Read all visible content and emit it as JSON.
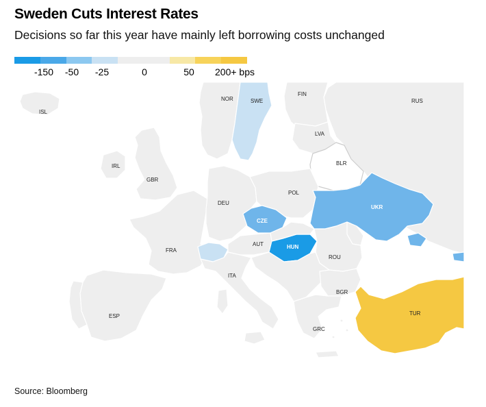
{
  "header": {
    "title": "Sweden Cuts Interest Rates",
    "subtitle": "Decisions so far this year have mainly left borrowing costs unchanged"
  },
  "legend": {
    "colors": [
      "#1a9be6",
      "#4aa8e8",
      "#8cc8f0",
      "#c9e1f3",
      "#eeeeee",
      "#eeeeee",
      "#f7e8a6",
      "#f7d35a",
      "#f5c842"
    ],
    "labels": [
      "-150",
      "-50",
      "-25",
      "0",
      "50",
      "200+ bps"
    ]
  },
  "map": {
    "countries": [
      {
        "code": "ISL",
        "change": "unchanged",
        "color": "#eeeeee"
      },
      {
        "code": "NOR",
        "change": "unchanged",
        "color": "#eeeeee"
      },
      {
        "code": "SWE",
        "change": "cut",
        "color": "#c9e1f3"
      },
      {
        "code": "FIN",
        "change": "unchanged",
        "color": "#eeeeee"
      },
      {
        "code": "RUS",
        "change": "unchanged",
        "color": "#eeeeee"
      },
      {
        "code": "IRL",
        "change": "unchanged",
        "color": "#eeeeee"
      },
      {
        "code": "GBR",
        "change": "unchanged",
        "color": "#eeeeee"
      },
      {
        "code": "LVA",
        "change": "unchanged",
        "color": "#eeeeee"
      },
      {
        "code": "BLR",
        "change": "no data",
        "color": "#ffffff"
      },
      {
        "code": "DEU",
        "change": "unchanged",
        "color": "#eeeeee"
      },
      {
        "code": "POL",
        "change": "unchanged",
        "color": "#eeeeee"
      },
      {
        "code": "CZE",
        "change": "cut",
        "color": "#6fb5ea"
      },
      {
        "code": "UKR",
        "change": "cut",
        "color": "#6fb5ea"
      },
      {
        "code": "FRA",
        "change": "unchanged",
        "color": "#eeeeee"
      },
      {
        "code": "AUT",
        "change": "unchanged",
        "color": "#eeeeee"
      },
      {
        "code": "HUN",
        "change": "cut",
        "color": "#1a9be6"
      },
      {
        "code": "ROU",
        "change": "unchanged",
        "color": "#eeeeee"
      },
      {
        "code": "ITA",
        "change": "unchanged",
        "color": "#eeeeee"
      },
      {
        "code": "BGR",
        "change": "unchanged",
        "color": "#eeeeee"
      },
      {
        "code": "ESP",
        "change": "unchanged",
        "color": "#eeeeee"
      },
      {
        "code": "GRC",
        "change": "unchanged",
        "color": "#eeeeee"
      },
      {
        "code": "TUR",
        "change": "hike",
        "color": "#f5c842"
      },
      {
        "code": "CHE",
        "change": "cut",
        "color": "#c9e1f3"
      }
    ]
  },
  "footer": {
    "source": "Source: Bloomberg"
  }
}
